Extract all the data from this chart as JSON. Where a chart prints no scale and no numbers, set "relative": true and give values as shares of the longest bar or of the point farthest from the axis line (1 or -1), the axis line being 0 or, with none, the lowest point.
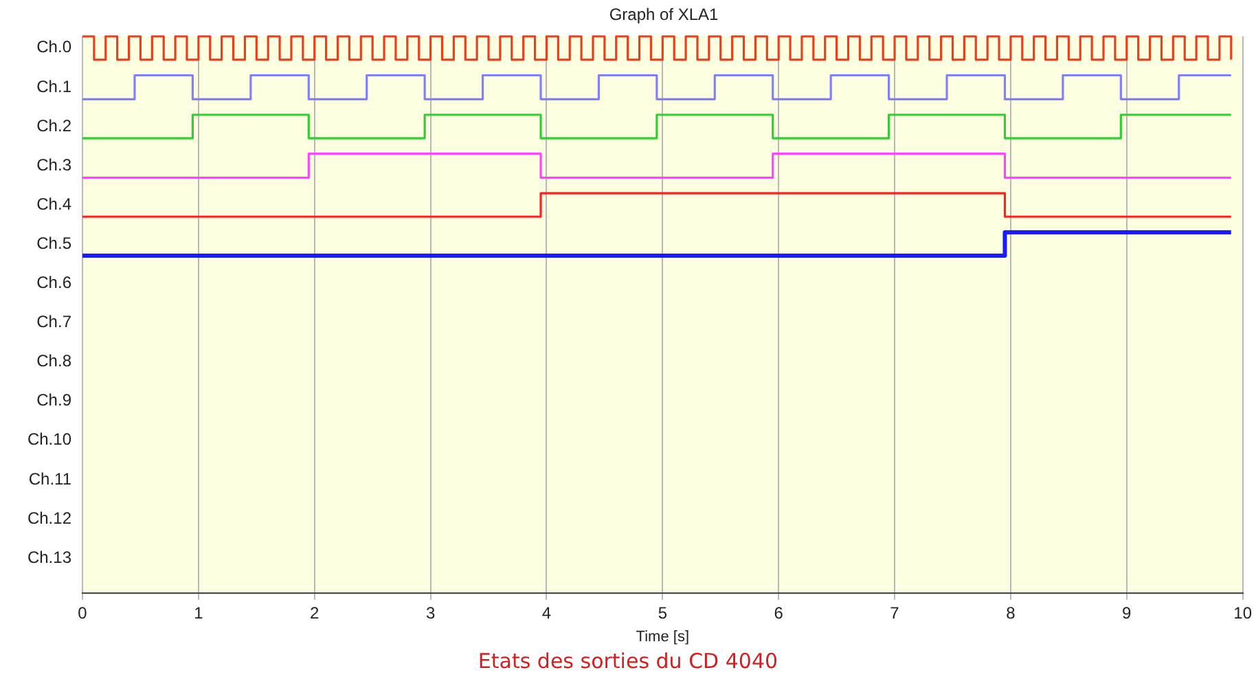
{
  "chart_data": {
    "type": "step",
    "title": "Graph of XLA1",
    "xlabel": "Time [s]",
    "annotations": [
      "Etats des sorties du CD 4040"
    ],
    "xlim": [
      0,
      10
    ],
    "xticks": [
      0,
      1,
      2,
      3,
      4,
      5,
      6,
      7,
      8,
      9,
      10
    ],
    "relative": true,
    "grid": "x",
    "legend": false,
    "marker": "none",
    "line_style": "solid",
    "series": [
      {
        "name": "Ch.0",
        "color": "#e8401c",
        "x": [
          0,
          0.1,
          0.2,
          0.3,
          0.4,
          0.5,
          0.6,
          0.7,
          0.8,
          0.9,
          1,
          1.1,
          1.2,
          1.3,
          1.4,
          1.5,
          1.6,
          1.7,
          1.8,
          1.9,
          2,
          2.1,
          2.2,
          2.3,
          2.4,
          2.5,
          2.6,
          2.7,
          2.8,
          2.9,
          3,
          3.1,
          3.2,
          3.3,
          3.4,
          3.5,
          3.6,
          3.7,
          3.8,
          3.9,
          4,
          4.1,
          4.2,
          4.3,
          4.4,
          4.5,
          4.6,
          4.7,
          4.8,
          4.9,
          5,
          5.1,
          5.2,
          5.3,
          5.4,
          5.5,
          5.6,
          5.7,
          5.8,
          5.9,
          6,
          6.1,
          6.2,
          6.3,
          6.4,
          6.5,
          6.6,
          6.7,
          6.8,
          6.9,
          7,
          7.1,
          7.2,
          7.3,
          7.4,
          7.5,
          7.6,
          7.7,
          7.8,
          7.9,
          8,
          8.1,
          8.2,
          8.3,
          8.4,
          8.5,
          8.6,
          8.7,
          8.8,
          8.9,
          9,
          9.1,
          9.2,
          9.3,
          9.4,
          9.5,
          9.6,
          9.7,
          9.8,
          9.9
        ],
        "values": [
          1,
          0.958,
          1,
          0.958,
          1,
          0.958,
          1,
          0.958,
          1,
          0.958,
          1,
          0.958,
          1,
          0.958,
          1,
          0.958,
          1,
          0.958,
          1,
          0.958,
          1,
          0.958,
          1,
          0.958,
          1,
          0.958,
          1,
          0.958,
          1,
          0.958,
          1,
          0.958,
          1,
          0.958,
          1,
          0.958,
          1,
          0.958,
          1,
          0.958,
          1,
          0.958,
          1,
          0.958,
          1,
          0.958,
          1,
          0.958,
          1,
          0.958,
          1,
          0.958,
          1,
          0.958,
          1,
          0.958,
          1,
          0.958,
          1,
          0.958,
          1,
          0.958,
          1,
          0.958,
          1,
          0.958,
          1,
          0.958,
          1,
          0.958,
          1,
          0.958,
          1,
          0.958,
          1,
          0.958,
          1,
          0.958,
          1,
          0.958,
          1,
          0.958,
          1,
          0.958,
          1,
          0.958,
          1,
          0.958,
          1,
          0.958,
          1,
          0.958,
          1,
          0.958,
          1,
          0.958,
          1,
          0.958,
          1,
          0.958
        ]
      },
      {
        "name": "Ch.1",
        "color": "#8080ff",
        "x": [
          0,
          0.45,
          0.95,
          1.45,
          1.95,
          2.45,
          2.95,
          3.45,
          3.95,
          4.45,
          4.95,
          5.45,
          5.95,
          6.45,
          6.95,
          7.45,
          7.95,
          8.45,
          8.95,
          9.45,
          9.9
        ],
        "values": [
          0.887,
          0.93,
          0.887,
          0.93,
          0.887,
          0.93,
          0.887,
          0.93,
          0.887,
          0.93,
          0.887,
          0.93,
          0.887,
          0.93,
          0.887,
          0.93,
          0.887,
          0.93,
          0.887,
          0.93,
          0.93
        ]
      },
      {
        "name": "Ch.2",
        "color": "#33cc33",
        "x": [
          0,
          0.95,
          1.95,
          2.95,
          3.95,
          4.95,
          5.95,
          6.95,
          7.95,
          8.95,
          9.9
        ],
        "values": [
          0.817,
          0.859,
          0.817,
          0.859,
          0.817,
          0.859,
          0.817,
          0.859,
          0.817,
          0.859,
          0.859
        ]
      },
      {
        "name": "Ch.3",
        "color": "#ff44ff",
        "x": [
          0,
          1.95,
          3.95,
          5.95,
          7.95,
          9.9
        ],
        "values": [
          0.746,
          0.789,
          0.746,
          0.789,
          0.746,
          0.746
        ]
      },
      {
        "name": "Ch.4",
        "color": "#ff2020",
        "x": [
          0,
          3.95,
          7.95,
          9.9
        ],
        "values": [
          0.676,
          0.718,
          0.676,
          0.676
        ]
      },
      {
        "name": "Ch.5",
        "color": "#1a1aff",
        "x": [
          0,
          7.95,
          9.9
        ],
        "values": [
          0.606,
          0.648,
          0.648
        ]
      },
      {
        "name": "Ch.6"
      },
      {
        "name": "Ch.7"
      },
      {
        "name": "Ch.8"
      },
      {
        "name": "Ch.9"
      },
      {
        "name": "Ch.10"
      },
      {
        "name": "Ch.11"
      },
      {
        "name": "Ch.12"
      },
      {
        "name": "Ch.13"
      }
    ]
  }
}
